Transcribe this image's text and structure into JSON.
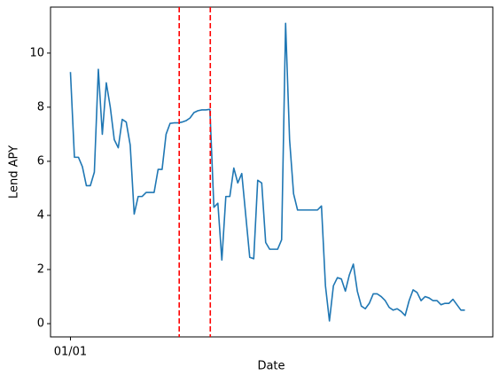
{
  "chart_data": {
    "type": "line",
    "xlabel": "Date",
    "ylabel": "Lend APY",
    "x": [
      0,
      1,
      2,
      3,
      4,
      5,
      6,
      7,
      8,
      9,
      10,
      11,
      12,
      13,
      14,
      15,
      16,
      17,
      18,
      19,
      20,
      21,
      22,
      23,
      24,
      25,
      26,
      27,
      28,
      29,
      30,
      31,
      32,
      33,
      34,
      35,
      36,
      37,
      38,
      39,
      40,
      41,
      42,
      43,
      44,
      45,
      46,
      47,
      48,
      49,
      50,
      51,
      52,
      53,
      54,
      55,
      56,
      57,
      58,
      59,
      60,
      61,
      62,
      63,
      64,
      65,
      66,
      67,
      68,
      69,
      70,
      71,
      72,
      73,
      74,
      75,
      76,
      77,
      78,
      79,
      80,
      81,
      82,
      83,
      84,
      85,
      86,
      87,
      88,
      89,
      90,
      91,
      92,
      93,
      94,
      95,
      96,
      97,
      98,
      99
    ],
    "values": [
      9.3,
      6.15,
      6.15,
      5.8,
      5.1,
      5.1,
      5.6,
      9.4,
      7.0,
      8.9,
      8.0,
      6.8,
      6.5,
      7.55,
      7.45,
      6.6,
      4.05,
      4.7,
      4.7,
      4.85,
      4.85,
      4.85,
      5.7,
      5.7,
      7.0,
      7.4,
      7.42,
      7.42,
      7.45,
      7.5,
      7.6,
      7.8,
      7.87,
      7.9,
      7.9,
      7.92,
      4.3,
      4.45,
      2.35,
      4.7,
      4.7,
      5.75,
      5.2,
      5.55,
      4.0,
      2.45,
      2.4,
      5.3,
      5.2,
      3.0,
      2.75,
      2.75,
      2.75,
      3.1,
      11.1,
      6.8,
      4.8,
      4.2,
      4.2,
      4.2,
      4.2,
      4.2,
      4.2,
      4.35,
      1.4,
      0.1,
      1.4,
      1.7,
      1.65,
      1.2,
      1.8,
      2.2,
      1.2,
      0.65,
      0.55,
      0.75,
      1.1,
      1.1,
      1.0,
      0.85,
      0.6,
      0.5,
      0.55,
      0.45,
      0.3,
      0.85,
      1.25,
      1.15,
      0.85,
      1.0,
      0.95,
      0.85,
      0.85,
      0.7,
      0.75,
      0.75,
      0.9,
      0.7,
      0.5,
      0.5
    ],
    "color": "#1f77b4",
    "xlim": [
      -5,
      106
    ],
    "xticks": [
      {
        "value": 0,
        "label": "01/01"
      }
    ],
    "ylim": [
      -0.49,
      11.7
    ],
    "yticks": [
      0,
      2,
      4,
      6,
      8,
      10
    ],
    "vlines": [
      27.3,
      35.1
    ],
    "vline_color": "#ff0000"
  }
}
